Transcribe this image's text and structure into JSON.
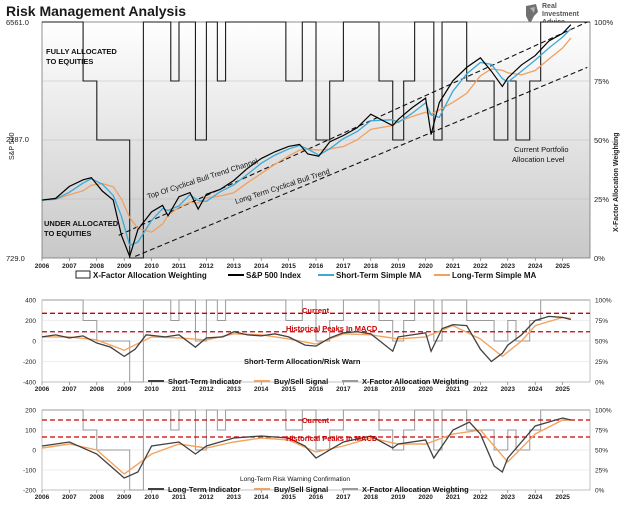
{
  "header": {
    "title": "Risk Management Analysis",
    "logo_lines": [
      "Real",
      "Investment",
      "Advice"
    ]
  },
  "colors": {
    "sp500": "#000000",
    "short_ma": "#3ca9d6",
    "long_ma": "#f0a060",
    "allocation": "#1a1a1a",
    "indicator": "#404040",
    "signal": "#f4a460",
    "weighting": "#9a9a9a",
    "reference": "#cc0000"
  },
  "chart_data": [
    {
      "type": "line",
      "title": "",
      "xlabel": "",
      "ylabel": "S&P 500",
      "ylabel_right": "X-Factor Allocation Weighting",
      "xlim": [
        2006,
        2026
      ],
      "ylim": [
        729,
        6561
      ],
      "ylim_right": [
        "0%",
        "100%"
      ],
      "y_ticks": [
        "6561.0",
        "2187.0",
        "729.0"
      ],
      "y_right_ticks": [
        "100%",
        "75%",
        "50%",
        "25%",
        "0%"
      ],
      "x_ticks": [
        "2006",
        "2007",
        "2008",
        "2009",
        "2010",
        "2011",
        "2012",
        "2013",
        "2014",
        "2015",
        "2016",
        "2017",
        "2018",
        "2019",
        "2020",
        "2021",
        "2022",
        "2023",
        "2024",
        "2025"
      ],
      "scale": "log",
      "legend_position": "bottom",
      "legend": [
        "X-Factor Allocation Weighting",
        "S&P 500 Index",
        "Short-Term Simple MA",
        "Long-Term Simple MA"
      ],
      "annotations": [
        "FULLY ALLOCATED TO EQUITIES",
        "UNDER ALLOCATED TO EQUITIES",
        "Top Of Cyclical Bull Trend Channel",
        "Long Term Cyclical Bull Trend",
        "Current Portfolio Allocation Level"
      ],
      "series": [
        {
          "name": "S&P 500 Index",
          "x": [
            2006,
            2006.5,
            2007,
            2007.5,
            2007.8,
            2008.2,
            2008.6,
            2008.9,
            2009.2,
            2009.5,
            2010,
            2010.4,
            2010.6,
            2011,
            2011.4,
            2011.7,
            2012,
            2012.5,
            2013,
            2013.5,
            2014,
            2014.5,
            2015,
            2015.4,
            2015.7,
            2016.1,
            2016.5,
            2017,
            2017.5,
            2018,
            2018.8,
            2019,
            2019.5,
            2020,
            2020.2,
            2020.5,
            2021,
            2021.5,
            2022,
            2022.4,
            2022.8,
            2023,
            2023.5,
            2024,
            2024.5,
            2025,
            2025.3
          ],
          "values": [
            1250,
            1270,
            1420,
            1510,
            1540,
            1360,
            1250,
            900,
            740,
            950,
            1120,
            1190,
            1080,
            1290,
            1340,
            1150,
            1320,
            1380,
            1500,
            1680,
            1840,
            1960,
            2060,
            2100,
            1920,
            1880,
            2150,
            2280,
            2450,
            2780,
            2500,
            2650,
            2950,
            3230,
            2300,
            3100,
            3800,
            4300,
            4700,
            4150,
            3600,
            3900,
            4400,
            4800,
            5500,
            5900,
            6400
          ]
        },
        {
          "name": "X-Factor Allocation Weighting",
          "x": [
            2006,
            2007.3,
            2007.5,
            2008,
            2008.5,
            2009.2,
            2009.7,
            2010.3,
            2010.7,
            2011,
            2011.6,
            2012,
            2012.4,
            2012.7,
            2013,
            2014.5,
            2014.9,
            2015.5,
            2016,
            2016.5,
            2017,
            2018,
            2018.3,
            2018.8,
            2019.2,
            2019.6,
            2020,
            2020.3,
            2020.6,
            2021,
            2021.5,
            2022,
            2022.5,
            2023,
            2023.3,
            2023.8,
            2024.2,
            2025
          ],
          "values": [
            100,
            100,
            75,
            50,
            50,
            0,
            100,
            100,
            75,
            100,
            50,
            100,
            75,
            100,
            100,
            100,
            75,
            100,
            50,
            75,
            100,
            100,
            75,
            50,
            75,
            100,
            100,
            50,
            100,
            100,
            75,
            75,
            50,
            75,
            50,
            75,
            100,
            100
          ]
        },
        {
          "name": "Short-Term Simple MA",
          "x": [],
          "values": []
        },
        {
          "name": "Long-Term Simple MA",
          "x": [],
          "values": []
        }
      ]
    },
    {
      "type": "line",
      "title": "",
      "xlabel": "",
      "ylabel": "",
      "xlim": [
        2006,
        2026
      ],
      "ylim": [
        -400,
        400
      ],
      "y_ticks": [
        "400",
        "200",
        "0",
        "-200",
        "-400"
      ],
      "y_right_ticks": [
        "100%",
        "75%",
        "50%",
        "25%",
        "0%"
      ],
      "legend_position": "bottom",
      "legend": [
        "Short-Term Indicator",
        "Buy/Sell Signal",
        "X-Factor Allocation Weighting"
      ],
      "annotations": [
        "Current",
        "Historical Peaks In MACD",
        "Short-Term Allocation/Risk Warn"
      ],
      "reference_lines": [
        270,
        90
      ],
      "series": [
        {
          "name": "Short-Term Indicator",
          "x": [
            2006,
            2006.5,
            2007,
            2007.5,
            2008,
            2008.5,
            2009,
            2009.4,
            2009.8,
            2010.5,
            2011,
            2011.6,
            2012,
            2012.6,
            2013,
            2013.5,
            2014,
            2014.5,
            2015,
            2015.6,
            2016,
            2016.5,
            2017,
            2017.5,
            2018,
            2018.8,
            2019,
            2019.5,
            2020,
            2020.2,
            2020.6,
            2021,
            2021.5,
            2022,
            2022.4,
            2022.8,
            2023,
            2023.5,
            2024,
            2024.5,
            2025,
            2025.3
          ],
          "values": [
            40,
            60,
            30,
            50,
            -20,
            -60,
            -150,
            -80,
            60,
            40,
            60,
            -60,
            30,
            40,
            90,
            60,
            50,
            70,
            40,
            -40,
            -50,
            30,
            80,
            90,
            70,
            -100,
            40,
            60,
            80,
            -100,
            120,
            160,
            150,
            -80,
            -200,
            -120,
            -40,
            60,
            200,
            240,
            230,
            210
          ]
        },
        {
          "name": "Buy/Sell Signal",
          "x": [
            2006,
            2007,
            2008,
            2009,
            2010,
            2011,
            2012,
            2013,
            2014,
            2015,
            2016,
            2017,
            2018,
            2019,
            2020,
            2021,
            2022,
            2022.8,
            2023.5,
            2024,
            2025,
            2025.3
          ],
          "values": [
            40,
            40,
            10,
            -90,
            40,
            30,
            10,
            70,
            60,
            20,
            -30,
            70,
            60,
            20,
            40,
            150,
            20,
            -150,
            0,
            150,
            230,
            220
          ]
        }
      ]
    },
    {
      "type": "line",
      "title": "",
      "xlabel": "",
      "ylabel": "",
      "xlim": [
        2006,
        2026
      ],
      "ylim": [
        -200,
        200
      ],
      "y_ticks": [
        "200",
        "100",
        "0",
        "-100",
        "-200"
      ],
      "y_right_ticks": [
        "100%",
        "75%",
        "50%",
        "25%",
        "0%"
      ],
      "legend_position": "bottom",
      "legend": [
        "Long-Term Indicator",
        "Buy/Sell Signal",
        "X-Factor Allocation Weighting"
      ],
      "annotations": [
        "Current",
        "Historical Peaks In MACD",
        "Long-Term Risk Warning Confirmation"
      ],
      "reference_lines": [
        150,
        65
      ],
      "series": [
        {
          "name": "Long-Term Indicator",
          "x": [
            2006,
            2007,
            2008,
            2008.5,
            2009,
            2009.5,
            2010,
            2011,
            2011.6,
            2012,
            2013,
            2014,
            2015,
            2015.6,
            2016,
            2017,
            2018,
            2018.8,
            2019,
            2020,
            2020.3,
            2021,
            2021.6,
            2022,
            2022.5,
            2022.8,
            2023,
            2024,
            2025,
            2025.3
          ],
          "values": [
            20,
            40,
            -20,
            -80,
            -140,
            -110,
            20,
            40,
            -20,
            20,
            60,
            70,
            60,
            20,
            -40,
            40,
            70,
            10,
            30,
            50,
            -40,
            100,
            140,
            80,
            -80,
            -110,
            -40,
            120,
            160,
            150
          ]
        },
        {
          "name": "Buy/Sell Signal",
          "x": [
            2006,
            2007,
            2008,
            2009,
            2010,
            2011,
            2012,
            2013,
            2014,
            2015,
            2016,
            2017,
            2018,
            2019,
            2020,
            2021,
            2022,
            2023,
            2024,
            2025,
            2025.3
          ],
          "values": [
            10,
            30,
            0,
            -120,
            -20,
            30,
            10,
            40,
            60,
            50,
            -10,
            20,
            60,
            30,
            30,
            80,
            100,
            -60,
            80,
            150,
            150
          ]
        }
      ]
    }
  ],
  "panel1": {
    "ylabel": "S&P 500",
    "ylabel_right": "X-Factor Allocation Weighting",
    "y_ticks": [
      "6561.0",
      "2187.0",
      "729.0"
    ],
    "y_right_ticks": [
      "100%",
      "75%",
      "50%",
      "25%",
      "0%"
    ],
    "x_ticks": [
      "2006",
      "2007",
      "2008",
      "2009",
      "2010",
      "2011",
      "2012",
      "2013",
      "2014",
      "2015",
      "2016",
      "2017",
      "2018",
      "2019",
      "2020",
      "2021",
      "2022",
      "2023",
      "2024",
      "2025"
    ],
    "annotations": {
      "fully": [
        "FULLY ALLOCATED",
        "TO EQUITIES"
      ],
      "under": [
        "UNDER ALLOCATED",
        "TO EQUITIES"
      ],
      "top_channel": "Top Of Cyclical Bull Trend Channel",
      "long_term": "Long Term Cyclical Bull Trend",
      "current": [
        "Current Portfolio",
        "Allocation Level"
      ]
    },
    "legend": [
      "X-Factor Allocation Weighting",
      "S&P 500 Index",
      "Short-Term Simple MA",
      "Long-Term Simple MA"
    ]
  },
  "panel2": {
    "y_ticks": [
      "400",
      "200",
      "0",
      "-200",
      "-400"
    ],
    "y_right_ticks": [
      "100%",
      "75%",
      "50%",
      "25%",
      "0%"
    ],
    "x_ticks": [
      "2006",
      "2007",
      "2008",
      "2009",
      "2010",
      "2011",
      "2012",
      "2013",
      "2014",
      "2015",
      "2016",
      "2017",
      "2018",
      "2019",
      "2020",
      "2021",
      "2022",
      "2023",
      "2024",
      "2025"
    ],
    "annotations": {
      "current": "Current",
      "peaks": "Historical Peaks In MACD",
      "warn": "Short-Term Allocation/Risk Warn"
    },
    "legend": [
      "Short-Term Indicator",
      "Buy/Sell Signal",
      "X-Factor Allocation Weighting"
    ]
  },
  "panel3": {
    "y_ticks": [
      "200",
      "100",
      "0",
      "-100",
      "-200"
    ],
    "y_right_ticks": [
      "100%",
      "75%",
      "50%",
      "25%",
      "0%"
    ],
    "x_ticks": [
      "2006",
      "2007",
      "2008",
      "2009",
      "2010",
      "2011",
      "2012",
      "2013",
      "2014",
      "2015",
      "2016",
      "2017",
      "2018",
      "2019",
      "2020",
      "2021",
      "2022",
      "2023",
      "2024",
      "2025"
    ],
    "annotations": {
      "current": "Current",
      "peaks": "Historical Peaks In MACD",
      "warn": "Long-Term Risk Warning Confirmation"
    },
    "legend": [
      "Long-Term Indicator",
      "Buy/Sell Signal",
      "X-Factor Allocation Weighting"
    ]
  }
}
